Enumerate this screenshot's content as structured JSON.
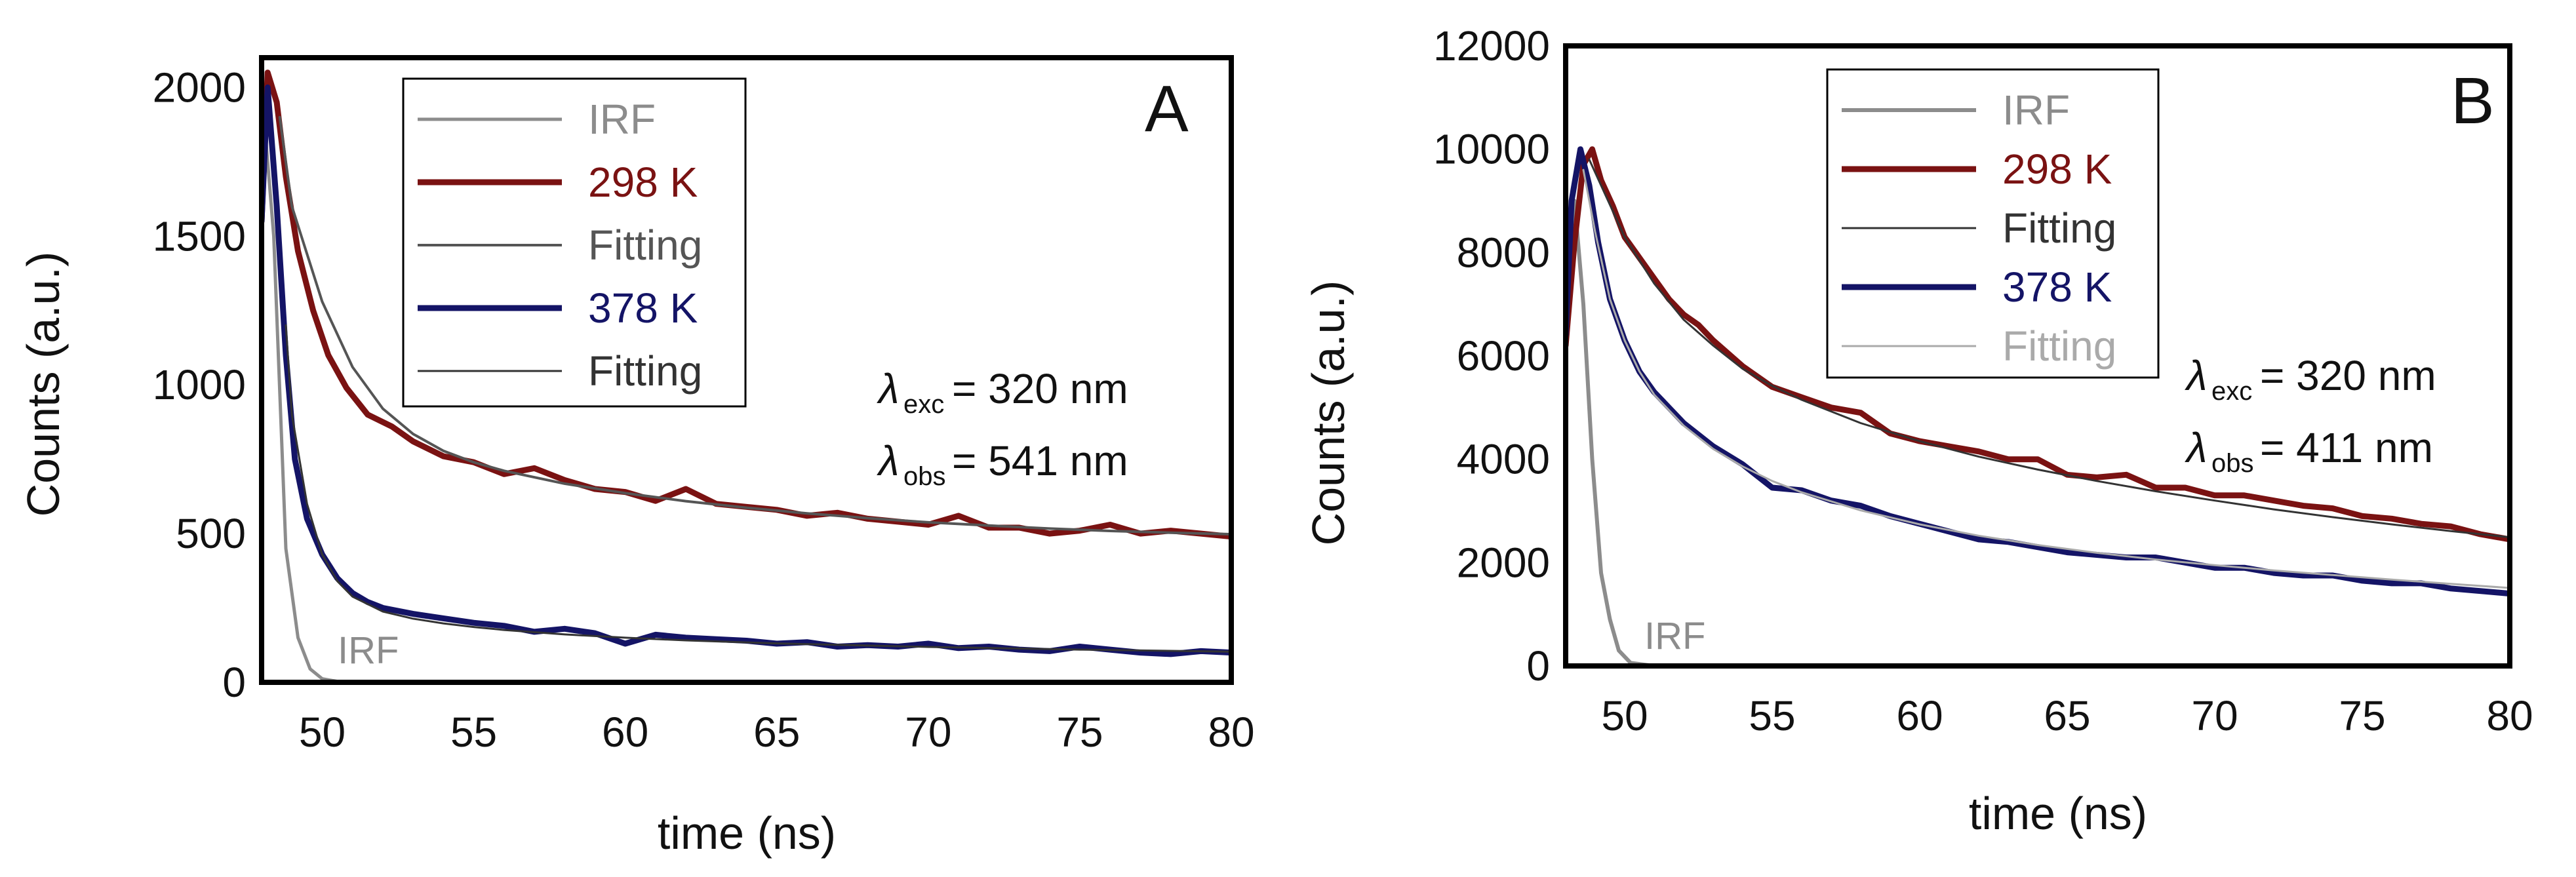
{
  "chart_data": [
    {
      "type": "line",
      "panel_label": "A",
      "xlabel": "time (ns)",
      "ylabel": "Counts (a.u.)",
      "xlim": [
        48,
        80
      ],
      "ylim": [
        0,
        2100
      ],
      "xticks": [
        50,
        55,
        60,
        65,
        70,
        75,
        80
      ],
      "yticks": [
        0,
        500,
        1000,
        1500,
        2000
      ],
      "legend_position": "top-center",
      "legend": [
        {
          "label": "IRF",
          "color": "#8c8c8c"
        },
        {
          "label": "298 K",
          "color": "#7a1212"
        },
        {
          "label": "Fitting",
          "color": "#555555"
        },
        {
          "label": "378 K",
          "color": "#141466"
        },
        {
          "label": "Fitting",
          "color": "#333333"
        }
      ],
      "annotation": {
        "exc_symbol": "λ",
        "exc_sub": "exc",
        "exc_value": "= 320 nm",
        "obs_symbol": "λ",
        "obs_sub": "obs",
        "obs_value": "= 541 nm"
      },
      "irf_label": "IRF",
      "series": [
        {
          "name": "IRF",
          "color": "#8c8c8c",
          "x": [
            48,
            48.4,
            48.8,
            49.2,
            49.6,
            50,
            50.5,
            52,
            60,
            70,
            80
          ],
          "y": [
            2000,
            1500,
            450,
            150,
            45,
            12,
            3,
            0,
            0,
            0,
            0
          ]
        },
        {
          "name": "298 K",
          "color": "#7a1212",
          "x": [
            48,
            48.2,
            48.5,
            48.8,
            49.2,
            49.7,
            50.2,
            50.8,
            51.5,
            52.3,
            53,
            54,
            55,
            56,
            57,
            58,
            59,
            60,
            61,
            62,
            63,
            64,
            65,
            66,
            67,
            68,
            69,
            70,
            71,
            72,
            73,
            74,
            75,
            76,
            77,
            78,
            79,
            80
          ],
          "y": [
            1550,
            2050,
            1950,
            1700,
            1450,
            1250,
            1100,
            990,
            900,
            860,
            810,
            760,
            740,
            700,
            720,
            680,
            650,
            640,
            610,
            650,
            600,
            590,
            580,
            560,
            570,
            550,
            540,
            530,
            560,
            520,
            520,
            500,
            510,
            530,
            500,
            510,
            500,
            490
          ]
        },
        {
          "name": "Fitting 298 K",
          "color": "#555555",
          "x": [
            48.6,
            49,
            50,
            51,
            52,
            53,
            54,
            55,
            56,
            58,
            60,
            62,
            64,
            66,
            68,
            70,
            72,
            74,
            76,
            78,
            80
          ],
          "y": [
            1900,
            1600,
            1280,
            1060,
            920,
            835,
            778,
            740,
            711,
            668,
            636,
            609,
            587,
            568,
            552,
            538,
            527,
            517,
            509,
            503,
            498
          ]
        },
        {
          "name": "378 K",
          "color": "#141466",
          "x": [
            48,
            48.2,
            48.5,
            48.8,
            49.1,
            49.5,
            50,
            50.5,
            51,
            51.5,
            52,
            53,
            54,
            55,
            56,
            57,
            58,
            59,
            60,
            61,
            62,
            63,
            64,
            65,
            66,
            67,
            68,
            69,
            70,
            71,
            72,
            73,
            74,
            75,
            76,
            77,
            78,
            79,
            80
          ],
          "y": [
            1550,
            2000,
            1600,
            1100,
            750,
            550,
            430,
            350,
            300,
            270,
            250,
            230,
            215,
            200,
            190,
            170,
            180,
            165,
            130,
            160,
            150,
            145,
            140,
            130,
            135,
            120,
            125,
            120,
            130,
            115,
            120,
            110,
            105,
            120,
            110,
            100,
            95,
            105,
            100
          ]
        },
        {
          "name": "Fitting 378 K",
          "color": "#333333",
          "x": [
            48.8,
            49,
            49.5,
            50,
            50.5,
            51,
            52,
            53,
            54,
            55,
            56,
            58,
            60,
            62,
            65,
            70,
            75,
            80
          ],
          "y": [
            1200,
            900,
            600,
            430,
            340,
            288,
            238,
            214,
            198,
            186,
            176,
            161,
            150,
            141,
            131,
            119,
            110,
            103
          ]
        }
      ]
    },
    {
      "type": "line",
      "panel_label": "B",
      "xlabel": "time (ns)",
      "ylabel": "Counts (a.u.)",
      "xlim": [
        48,
        80
      ],
      "ylim": [
        0,
        12000
      ],
      "xticks": [
        50,
        55,
        60,
        65,
        70,
        75,
        80
      ],
      "yticks": [
        0,
        2000,
        4000,
        6000,
        8000,
        10000,
        12000
      ],
      "legend_position": "top-center",
      "legend": [
        {
          "label": "IRF",
          "color": "#8c8c8c"
        },
        {
          "label": "298 K",
          "color": "#7a1212"
        },
        {
          "label": "Fitting",
          "color": "#333333"
        },
        {
          "label": "378 K",
          "color": "#141466"
        },
        {
          "label": "Fitting",
          "color": "#aaaaaa"
        }
      ],
      "annotation": {
        "exc_symbol": "λ",
        "exc_sub": "exc",
        "exc_value": "= 320 nm",
        "obs_symbol": "λ",
        "obs_sub": "obs",
        "obs_value": "= 411 nm"
      },
      "irf_label": "IRF",
      "series": [
        {
          "name": "IRF",
          "color": "#8c8c8c",
          "x": [
            48,
            48.3,
            48.6,
            48.9,
            49.2,
            49.5,
            49.8,
            50.2,
            51,
            60,
            70,
            80
          ],
          "y": [
            6000,
            9000,
            7000,
            4000,
            1800,
            900,
            300,
            60,
            0,
            0,
            0,
            0
          ]
        },
        {
          "name": "298 K",
          "color": "#7a1212",
          "x": [
            48,
            48.3,
            48.6,
            48.9,
            49.2,
            49.6,
            50,
            50.5,
            51,
            51.5,
            52,
            52.5,
            53,
            54,
            55,
            56,
            57,
            58,
            59,
            60,
            61,
            62,
            63,
            64,
            65,
            66,
            67,
            68,
            69,
            70,
            71,
            72,
            73,
            74,
            75,
            76,
            77,
            78,
            79,
            80
          ],
          "y": [
            6200,
            8200,
            9700,
            10000,
            9400,
            8900,
            8300,
            7900,
            7500,
            7100,
            6800,
            6600,
            6300,
            5800,
            5400,
            5200,
            5000,
            4900,
            4500,
            4350,
            4250,
            4150,
            4000,
            4000,
            3700,
            3650,
            3700,
            3450,
            3450,
            3300,
            3300,
            3200,
            3100,
            3050,
            2900,
            2850,
            2750,
            2700,
            2550,
            2450
          ]
        },
        {
          "name": "Fitting 298 K",
          "color": "#333333",
          "x": [
            48.8,
            49.2,
            50,
            51,
            52,
            53,
            54,
            55,
            56,
            58,
            60,
            62,
            64,
            66,
            68,
            70,
            72,
            74,
            76,
            78,
            80
          ],
          "y": [
            9800,
            9300,
            8300,
            7400,
            6700,
            6200,
            5750,
            5420,
            5150,
            4700,
            4350,
            4050,
            3800,
            3580,
            3380,
            3200,
            3030,
            2880,
            2740,
            2610,
            2490
          ]
        },
        {
          "name": "378 K",
          "color": "#141466",
          "x": [
            48,
            48.2,
            48.5,
            48.8,
            49.1,
            49.5,
            50,
            50.5,
            51,
            51.5,
            52,
            53,
            54,
            55,
            56,
            57,
            58,
            59,
            60,
            61,
            62,
            63,
            64,
            65,
            66,
            67,
            68,
            69,
            70,
            71,
            72,
            73,
            74,
            75,
            76,
            77,
            78,
            79,
            80
          ],
          "y": [
            6400,
            9000,
            10000,
            9300,
            8200,
            7100,
            6300,
            5700,
            5300,
            5000,
            4700,
            4250,
            3900,
            3450,
            3400,
            3200,
            3100,
            2900,
            2750,
            2600,
            2450,
            2400,
            2300,
            2200,
            2150,
            2100,
            2100,
            2000,
            1900,
            1900,
            1800,
            1750,
            1750,
            1650,
            1600,
            1600,
            1500,
            1450,
            1400
          ]
        },
        {
          "name": "Fitting 378 K",
          "color": "#aaaaaa",
          "x": [
            48.6,
            49,
            49.5,
            50,
            50.5,
            51,
            52,
            53,
            54,
            55,
            56,
            58,
            60,
            62,
            64,
            66,
            68,
            70,
            72,
            74,
            76,
            78,
            80
          ],
          "y": [
            9600,
            8400,
            7100,
            6300,
            5700,
            5250,
            4650,
            4200,
            3860,
            3580,
            3360,
            3010,
            2740,
            2520,
            2340,
            2190,
            2060,
            1950,
            1850,
            1760,
            1670,
            1590,
            1510
          ]
        }
      ]
    }
  ]
}
